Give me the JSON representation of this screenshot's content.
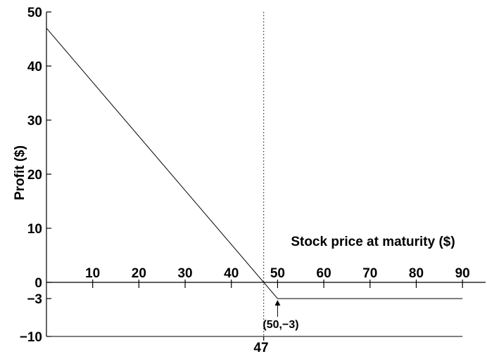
{
  "chart_data": {
    "type": "line",
    "title": "",
    "xlabel": "Stock price at maturity ($)",
    "ylabel": "Profit ($)",
    "xlim": [
      0,
      95
    ],
    "ylim": [
      -10,
      50
    ],
    "x_ticks": [
      10,
      20,
      30,
      40,
      50,
      60,
      70,
      80,
      90
    ],
    "x_tick_labels": [
      "10",
      "20",
      "30",
      "40",
      "50",
      "60",
      "70",
      "80",
      "90"
    ],
    "y_ticks": [
      -10,
      -3,
      0,
      10,
      20,
      30,
      40,
      50
    ],
    "y_tick_labels": [
      "−10",
      "−3",
      "0",
      "10",
      "20",
      "30",
      "40",
      "50"
    ],
    "series": [
      {
        "x": [
          0,
          50,
          90
        ],
        "y": [
          47,
          -3,
          -3
        ]
      }
    ],
    "breakeven": {
      "x": 47,
      "label": "47"
    },
    "annotation": {
      "x": 50,
      "y": -3,
      "text": "(50,−3)"
    },
    "grid": false
  }
}
